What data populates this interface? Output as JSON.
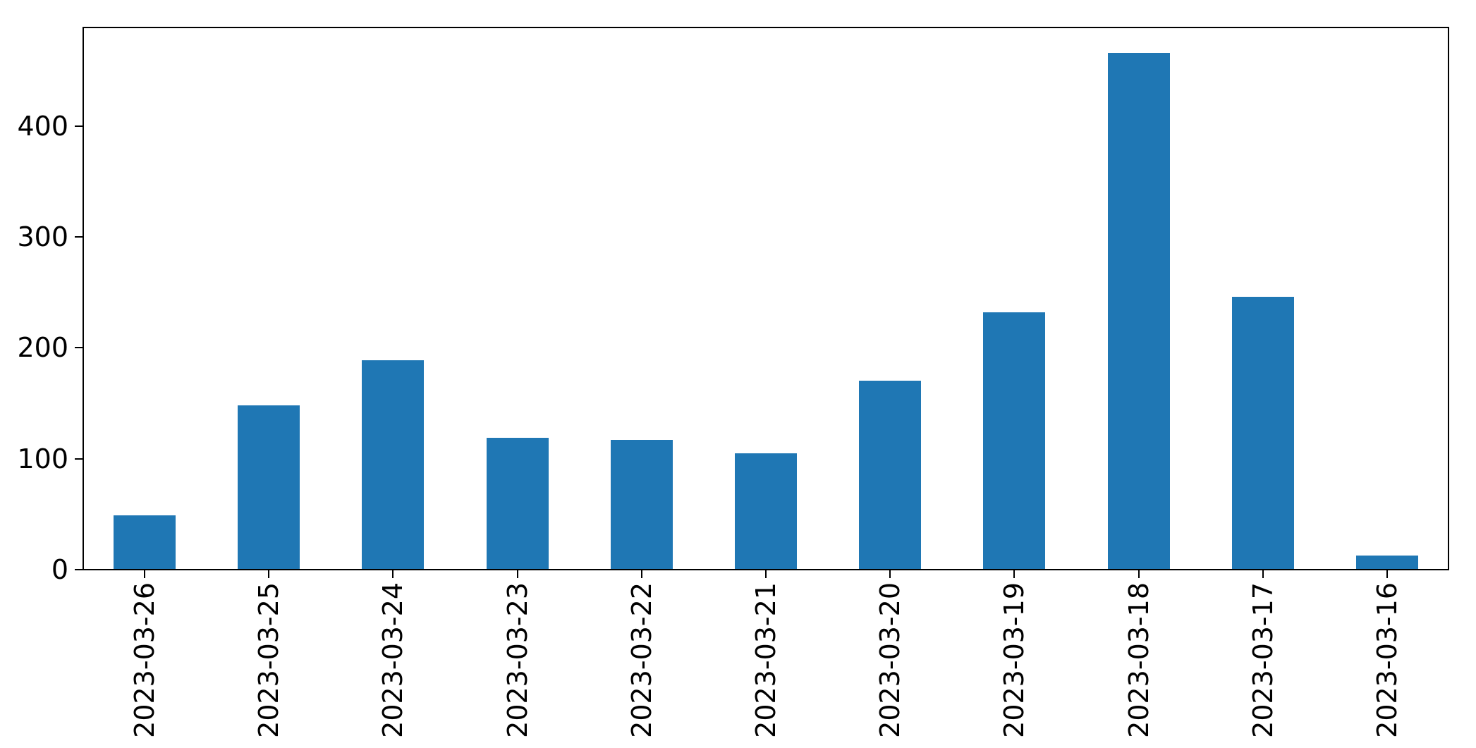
{
  "chart_data": {
    "type": "bar",
    "title": "",
    "xlabel": "",
    "ylabel": "",
    "categories": [
      "2023-03-26",
      "2023-03-25",
      "2023-03-24",
      "2023-03-23",
      "2023-03-22",
      "2023-03-21",
      "2023-03-20",
      "2023-03-19",
      "2023-03-18",
      "2023-03-17",
      "2023-03-16"
    ],
    "values": [
      49,
      148,
      189,
      119,
      117,
      105,
      170,
      232,
      466,
      246,
      13
    ],
    "yticks": [
      0,
      100,
      200,
      300,
      400
    ],
    "ylim": [
      0,
      489.3
    ],
    "bar_color": "#1f77b4",
    "axis_color": "#000000",
    "text_color": "#000000",
    "background_color": "#ffffff",
    "grid": false,
    "legend": null,
    "bar_width_fraction": 0.5,
    "x_tick_rotation_deg": 90
  }
}
